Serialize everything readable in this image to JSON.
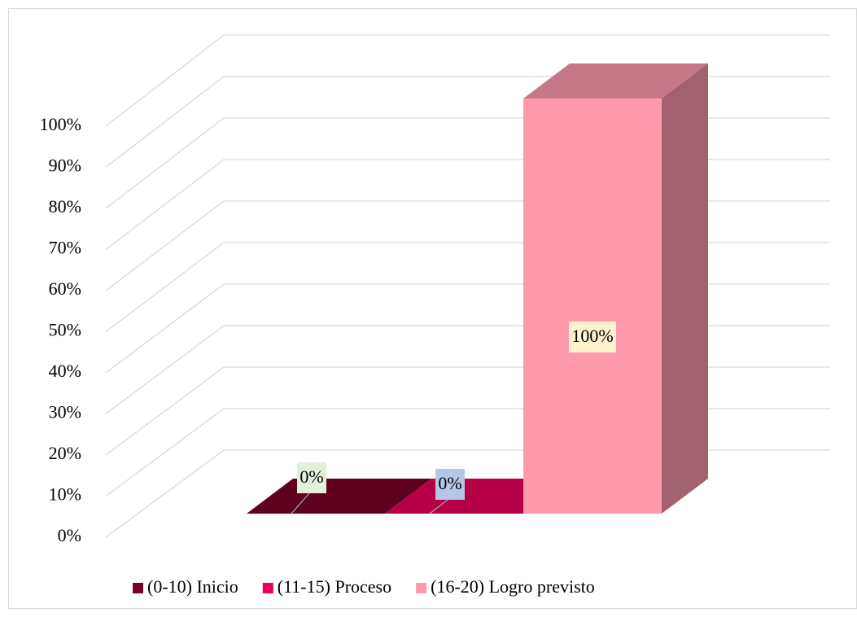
{
  "chart_data": {
    "type": "bar3d",
    "series": [
      {
        "name": "(0-10) Inicio",
        "color": "#7a0026",
        "label_color": "#e2f0d9",
        "values": [
          0
        ],
        "value_labels": [
          "0%"
        ]
      },
      {
        "name": "(11-15) Proceso",
        "color": "#e8005a",
        "label_color": "#b4c7e7",
        "values": [
          0
        ],
        "value_labels": [
          "0%"
        ]
      },
      {
        "name": "(16-20) Logro previsto",
        "color": "#ff9aae",
        "label_color": "#fff2cc",
        "values": [
          100
        ],
        "value_labels": [
          "100%"
        ]
      }
    ],
    "ylim": [
      0,
      100
    ],
    "yticks": [
      {
        "value": 0,
        "label": "0%"
      },
      {
        "value": 10,
        "label": "10%"
      },
      {
        "value": 20,
        "label": "20%"
      },
      {
        "value": 30,
        "label": "30%"
      },
      {
        "value": 40,
        "label": "40%"
      },
      {
        "value": 50,
        "label": "50%"
      },
      {
        "value": 60,
        "label": "60%"
      },
      {
        "value": 70,
        "label": "70%"
      },
      {
        "value": 80,
        "label": "80%"
      },
      {
        "value": 90,
        "label": "90%"
      },
      {
        "value": 100,
        "label": "100%"
      }
    ],
    "grid": true,
    "legend": "bottom"
  }
}
